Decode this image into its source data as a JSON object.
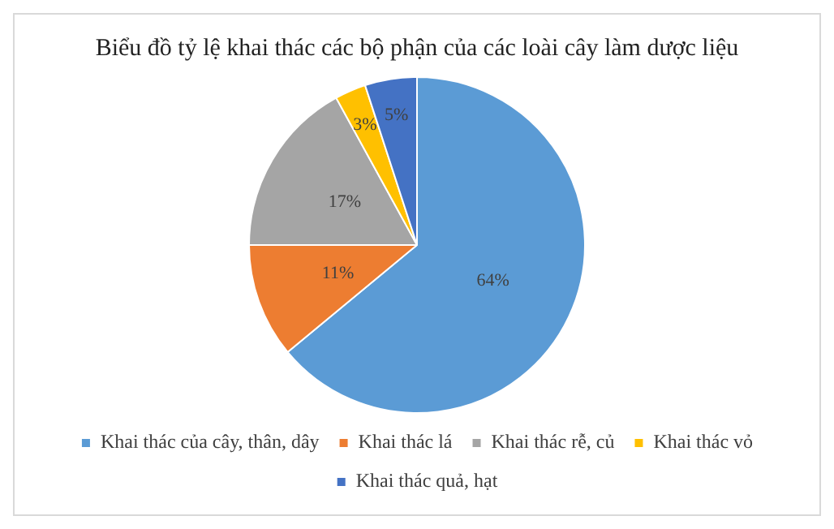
{
  "chart_data": {
    "type": "pie",
    "title": "Biểu đồ tỷ lệ khai thác các bộ phận của các loài cây làm dược liệu",
    "categories": [
      "Khai thác của cây, thân, dây",
      "Khai thác lá",
      "Khai thác rễ, củ",
      "Khai thác vỏ",
      "Khai thác quả, hạt"
    ],
    "values": [
      64,
      11,
      17,
      3,
      5
    ],
    "colors": [
      "#5b9bd5",
      "#ed7d31",
      "#a5a5a5",
      "#ffc000",
      "#4472c4"
    ],
    "value_labels": [
      "64%",
      "11%",
      "17%",
      "3%",
      "5%"
    ],
    "legend": "bottom"
  }
}
